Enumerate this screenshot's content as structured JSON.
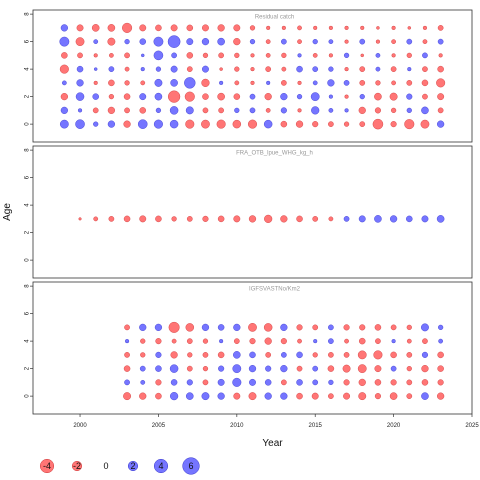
{
  "chart_data": {
    "type": "scatter",
    "subtype": "bubble",
    "xlabel": "Year",
    "ylabel": "Age",
    "xlim": [
      1997,
      2025
    ],
    "ylim": [
      -1.3,
      8.3
    ],
    "x_ticks": [
      2000,
      2005,
      2010,
      2015,
      2020,
      2025
    ],
    "y_ticks": [
      0,
      2,
      4,
      6,
      8
    ],
    "colors": {
      "positive": "#6666ff",
      "negative": "#ff6666",
      "outline_positive": "#3333cc",
      "outline_negative": "#cc3333"
    },
    "legend": {
      "placement": "bottom-left",
      "values": [
        -4,
        -2,
        0,
        2,
        4,
        6
      ],
      "labels": [
        "-4",
        "-2",
        "0",
        "2",
        "4",
        "6"
      ]
    },
    "panels": [
      {
        "title": "Residual catch",
        "ages": [
          0,
          1,
          2,
          3,
          4,
          5,
          6,
          7
        ],
        "years": [
          1999,
          2000,
          2001,
          2002,
          2003,
          2004,
          2005,
          2006,
          2007,
          2008,
          2009,
          2010,
          2011,
          2012,
          2013,
          2014,
          2015,
          2016,
          2017,
          2018,
          2019,
          2020,
          2021,
          2022,
          2023
        ],
        "values": [
          [
            1.5,
            1.8,
            0.5,
            1.0,
            -1.0,
            1.8,
            1.6,
            1.4,
            -1.6,
            -1.5,
            -1.6,
            -1.4,
            -1.6,
            1.4,
            -0.8,
            -1.0,
            -0.7,
            -0.6,
            -0.5,
            -0.6,
            -2.2,
            -0.7,
            -2.0,
            -1.5,
            1.0
          ],
          [
            1.0,
            0.3,
            -0.6,
            -1.0,
            -0.6,
            -0.8,
            0.5,
            1.4,
            1.2,
            -0.6,
            -0.6,
            0.5,
            0.6,
            -0.4,
            0.7,
            -0.3,
            1.3,
            0.4,
            0.3,
            -1.0,
            -0.7,
            -0.5,
            0.5,
            1.1,
            -0.6
          ],
          [
            -1.0,
            1.4,
            0.8,
            -0.5,
            -0.8,
            0.9,
            1.1,
            -3.0,
            -2.0,
            -0.8,
            -1.1,
            -0.8,
            0.6,
            -1.0,
            1.0,
            0.5,
            1.5,
            0.3,
            -0.3,
            0.5,
            -1.1,
            -1.2,
            0.7,
            -0.6,
            -0.9
          ],
          [
            0.4,
            1.0,
            -0.3,
            -0.8,
            -0.5,
            -0.4,
            1.2,
            1.1,
            2.6,
            -1.3,
            0.3,
            -0.4,
            -0.3,
            0.3,
            -0.6,
            -0.3,
            0.4,
            1.0,
            0.6,
            -0.6,
            -0.5,
            -0.4,
            -0.6,
            -0.8,
            -1.6
          ],
          [
            -1.6,
            0.8,
            0.2,
            0.6,
            -0.4,
            0.3,
            0.5,
            0.9,
            -0.6,
            0.9,
            -0.2,
            -0.5,
            -0.3,
            -0.6,
            -0.4,
            0.8,
            0.6,
            0.5,
            -0.3,
            -0.6,
            0.4,
            -0.6,
            0.3,
            -0.6,
            -0.8
          ],
          [
            -0.8,
            -0.6,
            -0.3,
            -0.4,
            -0.6,
            0.2,
            1.8,
            0.6,
            -0.8,
            -0.5,
            -0.6,
            -0.5,
            -0.3,
            -0.4,
            -0.5,
            0.3,
            -0.4,
            -0.3,
            0.5,
            -0.2,
            0.4,
            -0.3,
            -0.5,
            0.6,
            -0.3
          ],
          [
            1.9,
            -1.5,
            0.4,
            -1.2,
            0.5,
            0.8,
            1.9,
            3.2,
            0.9,
            1.0,
            1.1,
            -1.0,
            0.5,
            -0.4,
            0.6,
            -0.4,
            0.5,
            0.4,
            -0.3,
            0.6,
            -0.3,
            -0.4,
            0.6,
            -0.4,
            0.6
          ],
          [
            1.0,
            -0.9,
            -1.1,
            -1.1,
            -2.0,
            -0.9,
            -0.8,
            -0.9,
            -0.8,
            -0.9,
            -1.0,
            -0.9,
            -0.5,
            -0.3,
            -0.3,
            -0.4,
            -0.3,
            -0.3,
            -0.3,
            -0.3,
            -0.2,
            -0.3,
            -0.2,
            -0.3,
            -0.6
          ]
        ]
      },
      {
        "title": "FRA_OTB_lpue_WHG_kg_h",
        "ages": [
          3
        ],
        "years": [
          2000,
          2001,
          2002,
          2003,
          2004,
          2005,
          2006,
          2007,
          2008,
          2009,
          2010,
          2011,
          2012,
          2013,
          2014,
          2015,
          2016,
          2017,
          2018,
          2019,
          2020,
          2021,
          2022,
          2023
        ],
        "values": [
          [
            -0.15,
            -0.4,
            -0.6,
            -0.8,
            -0.9,
            -0.8,
            -0.5,
            -0.6,
            -0.7,
            -0.8,
            -0.9,
            -1.0,
            -1.3,
            -1.0,
            -0.8,
            -0.6,
            -0.4,
            0.6,
            0.9,
            1.1,
            1.0,
            0.8,
            0.9,
            1.1
          ]
        ]
      },
      {
        "title": "IGFSVASTNo/Km2",
        "ages": [
          0,
          1,
          2,
          3,
          4,
          5
        ],
        "years": [
          2003,
          2004,
          2005,
          2006,
          2007,
          2008,
          2009,
          2010,
          2011,
          2012,
          2013,
          2014,
          2015,
          2016,
          2017,
          2018,
          2019,
          2020,
          2021,
          2022,
          2023
        ],
        "values": [
          [
            -1.2,
            -1.0,
            -0.8,
            1.3,
            1.1,
            1.2,
            1.0,
            -0.9,
            -1.2,
            1.0,
            1.0,
            -0.8,
            -0.9,
            -0.6,
            -0.9,
            -1.2,
            -0.7,
            -1.1,
            -0.6,
            1.1,
            -1.0
          ],
          [
            0.6,
            0.4,
            -0.7,
            0.8,
            0.7,
            -0.6,
            0.9,
            1.6,
            0.9,
            0.8,
            -0.6,
            0.8,
            0.6,
            0.5,
            -0.7,
            -1.0,
            -0.8,
            -0.7,
            -0.6,
            -0.8,
            -0.7
          ],
          [
            -0.8,
            0.6,
            0.8,
            1.4,
            -0.6,
            -0.5,
            0.7,
            1.5,
            1.0,
            0.7,
            1.0,
            -0.6,
            0.6,
            -0.8,
            -1.2,
            -1.5,
            -0.9,
            0.6,
            -0.5,
            -1.0,
            -0.8
          ],
          [
            -0.6,
            -0.5,
            0.7,
            -1.0,
            -0.5,
            -0.6,
            -0.8,
            1.1,
            0.8,
            -0.6,
            0.6,
            0.8,
            -0.5,
            -0.6,
            -0.6,
            -1.5,
            -1.6,
            -0.8,
            -0.6,
            0.7,
            -0.8
          ],
          [
            0.3,
            -0.5,
            -0.7,
            -0.4,
            -0.6,
            -0.5,
            0.3,
            -0.6,
            -0.7,
            -1.0,
            -0.7,
            -0.4,
            0.3,
            0.6,
            -0.4,
            -0.8,
            -0.6,
            0.3,
            -0.4,
            -0.6,
            0.4
          ],
          [
            -0.6,
            1.0,
            1.0,
            -2.4,
            -1.4,
            1.0,
            0.8,
            1.0,
            -1.5,
            -1.4,
            1.0,
            -0.7,
            -0.6,
            0.6,
            -0.7,
            -0.7,
            -0.8,
            -0.6,
            -0.5,
            1.2,
            0.5
          ]
        ]
      }
    ]
  }
}
